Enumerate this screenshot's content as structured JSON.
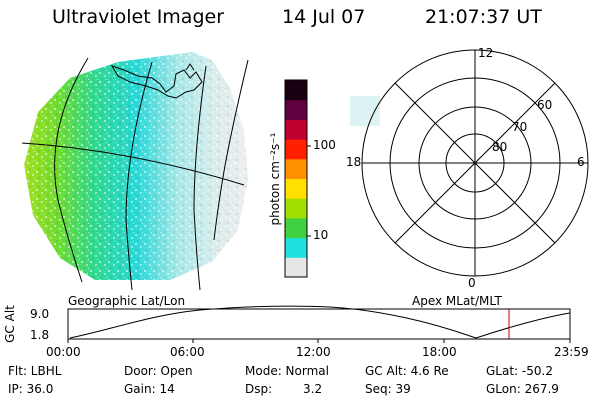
{
  "header": {
    "title": "Ultraviolet Imager",
    "date": "14 Jul 07",
    "time": "21:07:37 UT"
  },
  "colorbar": {
    "label": "photon cm⁻²s⁻¹",
    "ticks": [
      "100",
      "10"
    ],
    "colors": [
      "#e6e6e6",
      "#20e0e0",
      "#40d040",
      "#a0e000",
      "#ffe000",
      "#ff9000",
      "#ff2000",
      "#c00030",
      "#600040",
      "#180010"
    ]
  },
  "left_image": {
    "caption": "Geographic Lat/Lon"
  },
  "right_image": {
    "caption": "Apex MLat/MLT",
    "mlt_labels": [
      "12",
      "18",
      "6",
      "0"
    ],
    "mlat_labels": [
      "60",
      "70",
      "80"
    ]
  },
  "timeline": {
    "axis_label": "GC Alt",
    "y_ticks": [
      "9.0",
      "1.8"
    ],
    "x_ticks": [
      "00:00",
      "06:00",
      "12:00",
      "18:00",
      "23:59"
    ],
    "current_marker_color": "#c00000"
  },
  "footer": {
    "flt": "Flt: LBHL",
    "ip": "IP: 36.0",
    "door": "Door: Open",
    "gain": "Gain: 14",
    "mode": "Mode: Normal",
    "dsp_label": "Dsp:",
    "dsp_value": "3.2",
    "gc_alt": "GC Alt: 4.6 Re",
    "seq": "Seq: 39",
    "glat": "GLat: -50.2",
    "glon": "GLon: 267.9"
  }
}
